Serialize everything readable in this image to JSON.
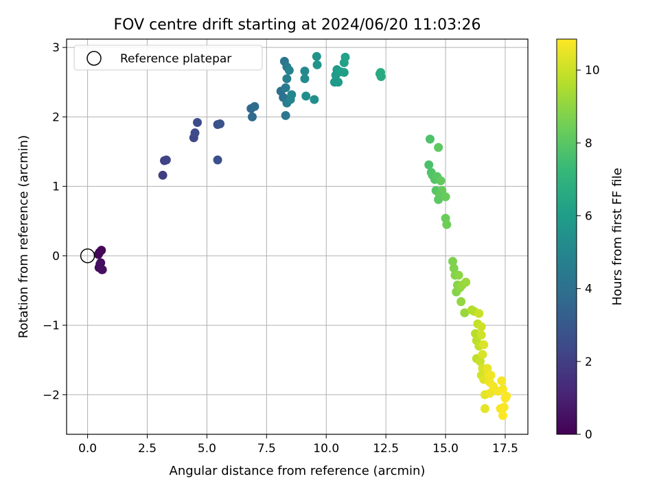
{
  "chart_data": {
    "type": "scatter",
    "title": "FOV centre drift starting at 2024/06/20 11:03:26",
    "xlabel": "Angular distance from reference (arcmin)",
    "ylabel": "Rotation from reference (arcmin)",
    "xlim": [
      -0.88,
      18.45
    ],
    "ylim": [
      -2.57,
      3.12
    ],
    "xticks": [
      0.0,
      2.5,
      5.0,
      7.5,
      10.0,
      12.5,
      15.0,
      17.5
    ],
    "xtick_labels": [
      "0.0",
      "2.5",
      "5.0",
      "7.5",
      "10.0",
      "12.5",
      "15.0",
      "17.5"
    ],
    "yticks": [
      -2,
      -1,
      0,
      1,
      2,
      3
    ],
    "ytick_labels": [
      "−2",
      "−1",
      "0",
      "1",
      "2",
      "3"
    ],
    "grid": true,
    "legend": {
      "position": "upper-left",
      "entries": [
        "Reference platepar"
      ]
    },
    "reference_point": {
      "x": 0.0,
      "y": 0.0
    },
    "colorbar": {
      "label": "Hours from first FF file",
      "range": [
        0,
        10.85
      ],
      "ticks": [
        0,
        2,
        4,
        6,
        8,
        10
      ],
      "tick_labels": [
        "0",
        "2",
        "4",
        "6",
        "8",
        "10"
      ],
      "colormap": "viridis"
    },
    "points": [
      [
        0.5,
        0.05,
        0.1
      ],
      [
        0.58,
        0.08,
        0.15
      ],
      [
        0.45,
        0.02,
        0.2
      ],
      [
        0.55,
        -0.1,
        0.25
      ],
      [
        0.48,
        -0.17,
        0.3
      ],
      [
        0.6,
        -0.2,
        0.35
      ],
      [
        0.52,
        -0.12,
        0.4
      ],
      [
        0.62,
        -0.2,
        0.45
      ],
      [
        3.15,
        1.16,
        2.0
      ],
      [
        3.22,
        1.37,
        2.1
      ],
      [
        3.3,
        1.38,
        2.2
      ],
      [
        4.45,
        1.7,
        2.3
      ],
      [
        4.5,
        1.77,
        2.4
      ],
      [
        4.6,
        1.92,
        2.5
      ],
      [
        5.45,
        1.38,
        2.6
      ],
      [
        5.45,
        1.89,
        2.7
      ],
      [
        5.55,
        1.9,
        2.8
      ],
      [
        6.85,
        2.12,
        3.6
      ],
      [
        6.9,
        2.0,
        3.7
      ],
      [
        7.0,
        2.15,
        3.8
      ],
      [
        8.1,
        2.37,
        4.0
      ],
      [
        8.2,
        2.28,
        4.1
      ],
      [
        8.25,
        2.8,
        4.2
      ],
      [
        8.3,
        2.02,
        4.3
      ],
      [
        8.3,
        2.42,
        4.4
      ],
      [
        8.35,
        2.72,
        4.5
      ],
      [
        8.35,
        2.2,
        4.6
      ],
      [
        8.35,
        2.55,
        4.7
      ],
      [
        8.45,
        2.67,
        4.8
      ],
      [
        8.5,
        2.25,
        4.9
      ],
      [
        8.55,
        2.32,
        5.0
      ],
      [
        9.1,
        2.66,
        5.1
      ],
      [
        9.1,
        2.55,
        5.2
      ],
      [
        9.15,
        2.3,
        5.3
      ],
      [
        9.5,
        2.25,
        5.4
      ],
      [
        9.6,
        2.87,
        5.5
      ],
      [
        9.62,
        2.75,
        5.6
      ],
      [
        10.35,
        2.5,
        5.8
      ],
      [
        10.4,
        2.6,
        5.85
      ],
      [
        10.45,
        2.68,
        5.9
      ],
      [
        10.5,
        2.5,
        5.95
      ],
      [
        10.55,
        2.65,
        6.0
      ],
      [
        10.6,
        2.65,
        6.05
      ],
      [
        10.75,
        2.64,
        6.1
      ],
      [
        10.75,
        2.78,
        6.15
      ],
      [
        10.8,
        2.86,
        6.2
      ],
      [
        12.25,
        2.62,
        6.5
      ],
      [
        12.3,
        2.58,
        6.55
      ],
      [
        12.28,
        2.64,
        6.6
      ],
      [
        14.3,
        1.31,
        7.7
      ],
      [
        14.35,
        1.68,
        7.75
      ],
      [
        14.4,
        1.2,
        7.8
      ],
      [
        14.45,
        1.16,
        7.85
      ],
      [
        14.55,
        1.1,
        7.9
      ],
      [
        14.6,
        0.94,
        7.95
      ],
      [
        14.65,
        1.14,
        8.0
      ],
      [
        14.7,
        0.81,
        8.05
      ],
      [
        14.7,
        1.56,
        8.1
      ],
      [
        14.75,
        0.88,
        8.15
      ],
      [
        14.8,
        1.08,
        8.2
      ],
      [
        14.85,
        0.94,
        8.25
      ],
      [
        15.0,
        0.85,
        8.3
      ],
      [
        15.0,
        0.54,
        8.35
      ],
      [
        15.05,
        0.45,
        8.4
      ],
      [
        15.3,
        -0.08,
        8.7
      ],
      [
        15.35,
        -0.18,
        8.75
      ],
      [
        15.4,
        -0.28,
        8.8
      ],
      [
        15.45,
        -0.52,
        8.85
      ],
      [
        15.5,
        -0.42,
        8.9
      ],
      [
        15.55,
        -0.28,
        8.95
      ],
      [
        15.6,
        -0.46,
        9.0
      ],
      [
        15.65,
        -0.66,
        9.05
      ],
      [
        15.7,
        -0.42,
        9.1
      ],
      [
        15.8,
        -0.82,
        9.15
      ],
      [
        15.85,
        -0.38,
        9.2
      ],
      [
        16.1,
        -0.78,
        9.6
      ],
      [
        16.2,
        -0.8,
        9.65
      ],
      [
        16.25,
        -1.12,
        9.7
      ],
      [
        16.3,
        -1.22,
        9.75
      ],
      [
        16.3,
        -1.48,
        9.8
      ],
      [
        16.35,
        -0.98,
        9.85
      ],
      [
        16.4,
        -1.3,
        9.9
      ],
      [
        16.45,
        -1.52,
        9.95
      ],
      [
        16.4,
        -0.83,
        10.0
      ],
      [
        16.5,
        -1.02,
        10.05
      ],
      [
        16.5,
        -1.14,
        10.1
      ],
      [
        16.5,
        -1.72,
        10.15
      ],
      [
        16.55,
        -1.62,
        10.2
      ],
      [
        16.55,
        -1.42,
        10.25
      ],
      [
        16.6,
        -1.28,
        10.3
      ],
      [
        16.6,
        -1.78,
        10.35
      ],
      [
        16.65,
        -2.0,
        10.4
      ],
      [
        16.65,
        -2.2,
        10.45
      ],
      [
        16.75,
        -1.62,
        10.5
      ],
      [
        16.8,
        -1.72,
        10.55
      ],
      [
        16.85,
        -1.98,
        10.6
      ],
      [
        16.85,
        -1.82,
        10.62
      ],
      [
        16.9,
        -1.72,
        10.65
      ],
      [
        17.0,
        -1.88,
        10.68
      ],
      [
        17.2,
        -1.95,
        10.7
      ],
      [
        17.3,
        -2.2,
        10.72
      ],
      [
        17.35,
        -1.8,
        10.74
      ],
      [
        17.4,
        -1.92,
        10.76
      ],
      [
        17.45,
        -2.18,
        10.78
      ],
      [
        17.5,
        -2.05,
        10.8
      ],
      [
        17.55,
        -2.02,
        10.82
      ],
      [
        17.4,
        -2.3,
        10.84
      ]
    ]
  }
}
